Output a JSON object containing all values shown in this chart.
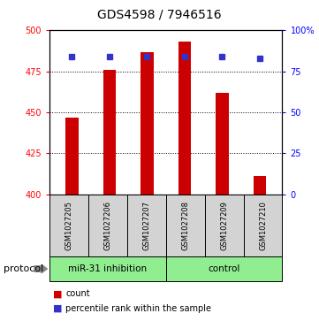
{
  "title": "GDS4598 / 7946516",
  "samples": [
    "GSM1027205",
    "GSM1027206",
    "GSM1027207",
    "GSM1027208",
    "GSM1027209",
    "GSM1027210"
  ],
  "counts": [
    447,
    476,
    487,
    493,
    462,
    411
  ],
  "percentile_ranks": [
    84,
    84,
    84,
    84,
    84,
    83
  ],
  "bar_color": "#CC0000",
  "dot_color": "#3333CC",
  "left_ylim": [
    400,
    500
  ],
  "left_yticks": [
    400,
    425,
    450,
    475,
    500
  ],
  "right_ylim": [
    0,
    100
  ],
  "right_yticks": [
    0,
    25,
    50,
    75,
    100
  ],
  "right_yticklabels": [
    "0",
    "25",
    "50",
    "75",
    "100%"
  ],
  "grid_values": [
    425,
    450,
    475
  ],
  "background_color": "#ffffff",
  "sample_box_color": "#d3d3d3",
  "protocol_label": "protocol",
  "mir_label": "miR-31 inhibition",
  "ctrl_label": "control",
  "legend_count": "count",
  "legend_pct": "percentile rank within the sample",
  "green_color": "#90EE90",
  "title_fontsize": 10,
  "tick_fontsize": 7,
  "sample_fontsize": 6,
  "proto_fontsize": 7.5,
  "legend_fontsize": 7
}
